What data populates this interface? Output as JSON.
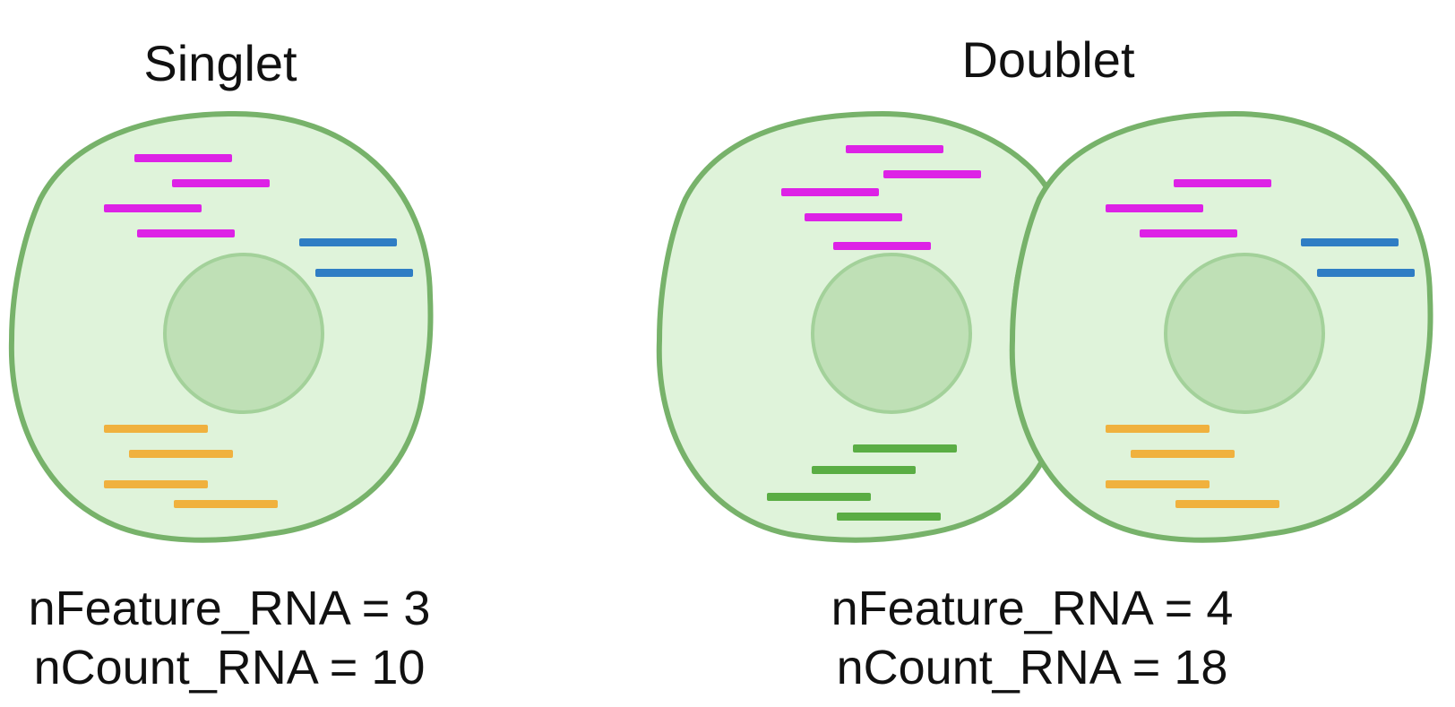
{
  "panels": [
    {
      "title": "Singlet",
      "metrics": {
        "nfeature": "nFeature_RNA = 3",
        "ncount": "nCount_RNA = 10"
      }
    },
    {
      "title": "Doublet",
      "metrics": {
        "nfeature": "nFeature_RNA = 4",
        "ncount": "nCount_RNA = 18"
      }
    }
  ],
  "colors": {
    "cell_fill": "#dff3da",
    "cell_stroke": "#77b26a",
    "nucleus_fill": "#bfe0b6",
    "nucleus_stroke": "#a3d19a",
    "magenta": "#dd22e6",
    "blue": "#2f7dc4",
    "orange": "#f0b13e",
    "green": "#5aad44"
  }
}
